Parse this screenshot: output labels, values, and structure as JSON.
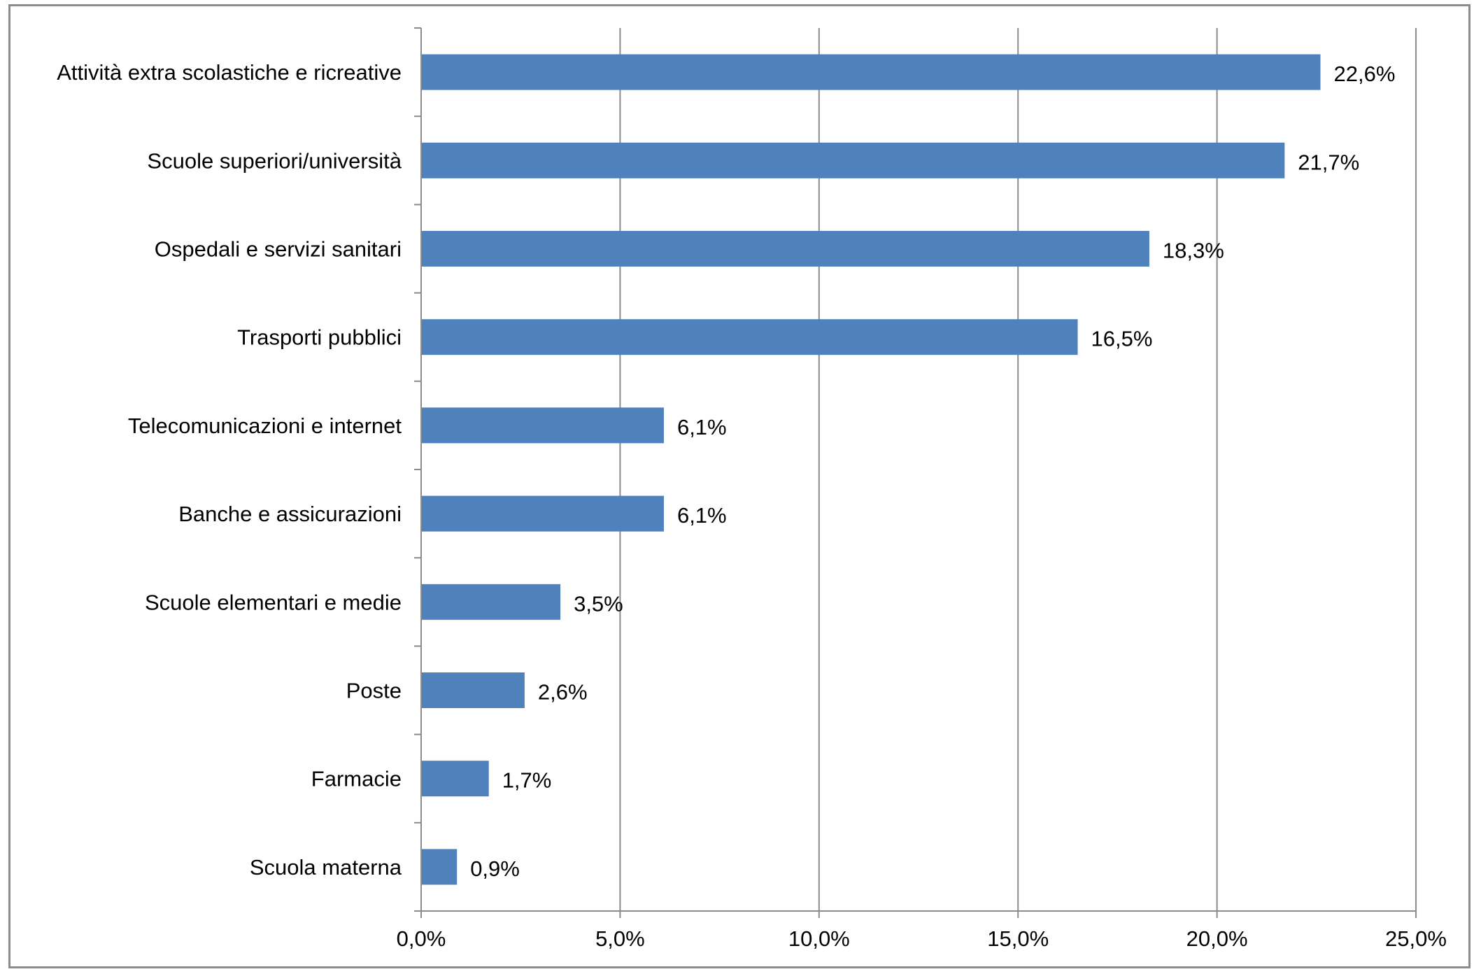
{
  "chart_data": {
    "type": "bar",
    "orientation": "horizontal",
    "title": "",
    "xlabel": "",
    "ylabel": "",
    "categories": [
      "Attività extra scolastiche e ricreative",
      "Scuole superiori/università",
      "Ospedali e servizi sanitari",
      "Trasporti pubblici",
      "Telecomunicazioni e internet",
      "Banche e assicurazioni",
      "Scuole elementari e medie",
      "Poste",
      "Farmacie",
      "Scuola materna"
    ],
    "values": [
      22.6,
      21.7,
      18.3,
      16.5,
      6.1,
      6.1,
      3.5,
      2.6,
      1.7,
      0.9
    ],
    "value_labels": [
      "22,6%",
      "21,7%",
      "18,3%",
      "16,5%",
      "6,1%",
      "6,1%",
      "3,5%",
      "2,6%",
      "1,7%",
      "0,9%"
    ],
    "x_ticks": [
      0,
      5,
      10,
      15,
      20,
      25
    ],
    "x_tick_labels": [
      "0,0%",
      "5,0%",
      "10,0%",
      "15,0%",
      "20,0%",
      "25,0%"
    ],
    "xlim": [
      0,
      25
    ],
    "grid": "vertical major gridlines",
    "legend": "none",
    "bar_color": "#4f81bd",
    "grid_color": "#8c8c8c",
    "axis_color": "#8c8c8c"
  }
}
